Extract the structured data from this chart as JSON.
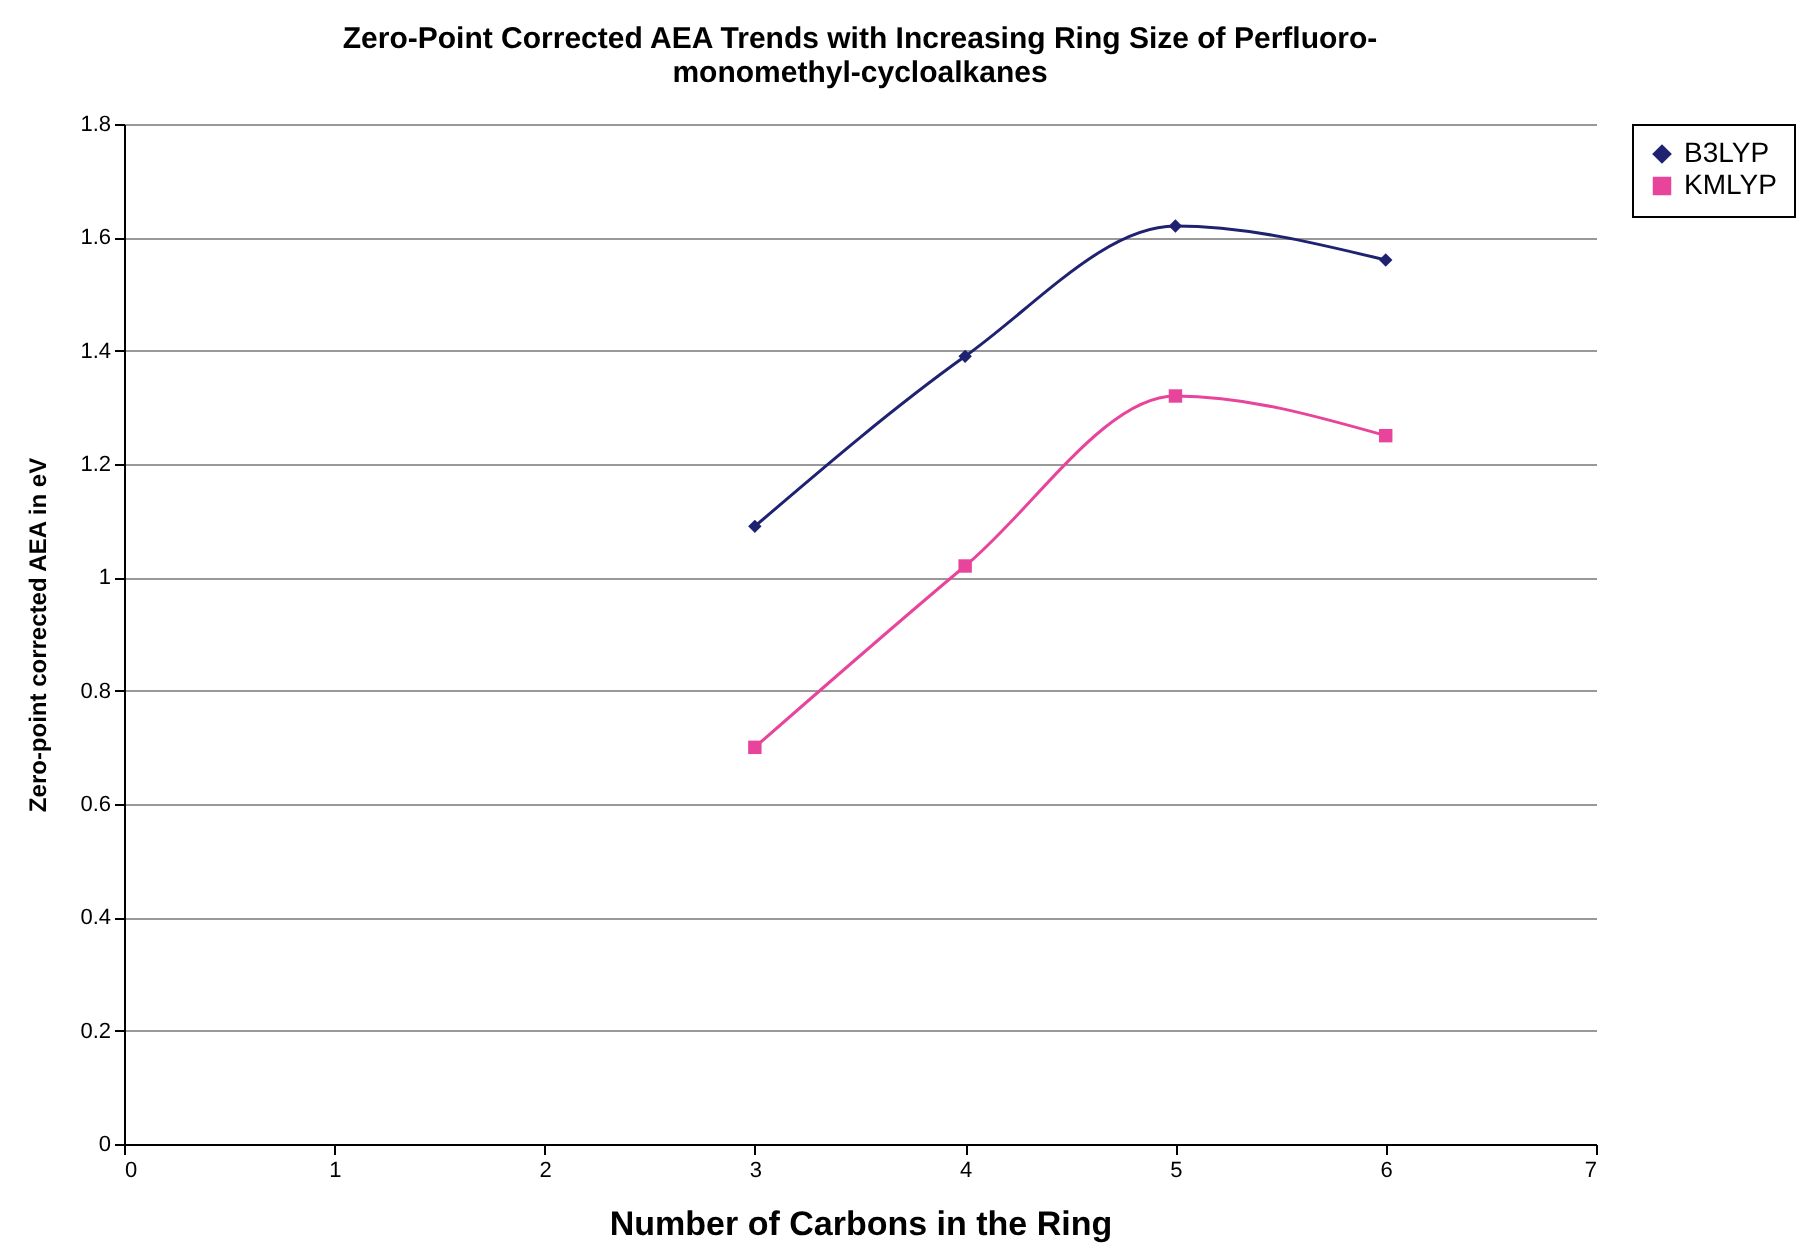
{
  "chart_data": {
    "type": "line",
    "title": "Zero-Point Corrected AEA Trends with Increasing Ring Size of Perfluoro-monomethyl-cycloalkanes",
    "xlabel": "Number of Carbons in the Ring",
    "ylabel": "Zero-point corrected AEA in eV",
    "x": [
      3,
      4,
      5,
      6
    ],
    "series": [
      {
        "name": "B3LYP",
        "color": "#1f2270",
        "marker": "diamond",
        "values": [
          1.09,
          1.39,
          1.62,
          1.56
        ]
      },
      {
        "name": "KMLYP",
        "color": "#e8449c",
        "marker": "square",
        "values": [
          0.7,
          1.02,
          1.32,
          1.25
        ]
      }
    ],
    "xlim": [
      0,
      7
    ],
    "xticks": [
      0,
      1,
      2,
      3,
      4,
      5,
      6,
      7
    ],
    "ylim": [
      0,
      1.8
    ],
    "yticks": [
      0,
      0.2,
      0.4,
      0.6,
      0.8,
      1,
      1.2,
      1.4,
      1.6,
      1.8
    ],
    "grid": "y",
    "legend": "right",
    "line_style": "solid"
  }
}
